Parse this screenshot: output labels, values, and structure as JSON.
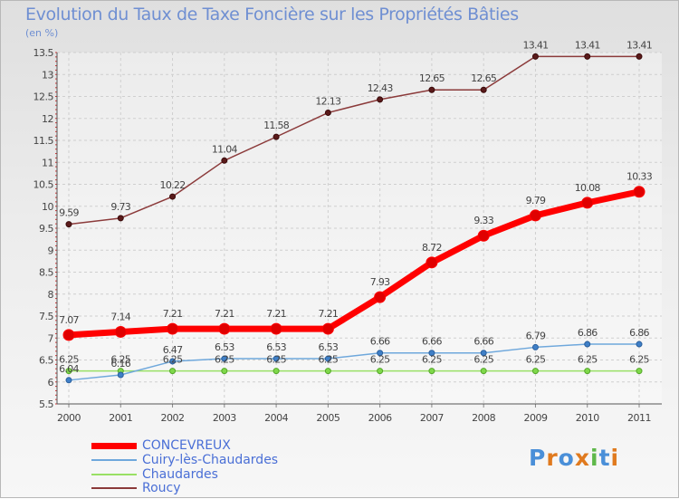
{
  "chart_data": {
    "type": "line",
    "title": "Evolution du Taux de Taxe Foncière sur les Propriétés Bâties",
    "ylabel": "(en %)",
    "x": [
      "2000",
      "2001",
      "2002",
      "2003",
      "2004",
      "2005",
      "2006",
      "2007",
      "2008",
      "2009",
      "2010",
      "2011"
    ],
    "ylim": [
      5.5,
      13.5
    ],
    "yticks": [
      "5.5",
      "6",
      "6.5",
      "7",
      "7.5",
      "8",
      "8.5",
      "9",
      "9.5",
      "10",
      "10.5",
      "11",
      "11.5",
      "12",
      "12.5",
      "13",
      "13.5"
    ],
    "grid": true,
    "series": [
      {
        "name": "CONCEVREUX",
        "color": "#ff0000",
        "labels": [
          "7.07",
          "7.14",
          "7.21",
          "7.21",
          "7.21",
          "7.21",
          "7.93",
          "8.72",
          "9.33",
          "9.79",
          "10.08",
          "10.33"
        ],
        "values": [
          7.07,
          7.14,
          7.21,
          7.21,
          7.21,
          7.21,
          7.93,
          8.72,
          9.33,
          9.79,
          10.08,
          10.33
        ]
      },
      {
        "name": "Cuiry-lès-Chaudardes",
        "color": "#6fa8dc",
        "labels": [
          "6.04",
          "6.16",
          "6.47",
          "6.53",
          "6.53",
          "6.53",
          "6.66",
          "6.66",
          "6.66",
          "6.79",
          "6.86",
          "6.86"
        ],
        "values": [
          6.04,
          6.16,
          6.47,
          6.53,
          6.53,
          6.53,
          6.66,
          6.66,
          6.66,
          6.79,
          6.86,
          6.86
        ]
      },
      {
        "name": "Chaudardes",
        "color": "#99e065",
        "labels": [
          "6.25",
          "6.25",
          "6.25",
          "6.25",
          "6.25",
          "6.25",
          "6.25",
          "6.25",
          "6.25",
          "6.25",
          "6.25",
          "6.25"
        ],
        "values": [
          6.25,
          6.25,
          6.25,
          6.25,
          6.25,
          6.25,
          6.25,
          6.25,
          6.25,
          6.25,
          6.25,
          6.25
        ]
      },
      {
        "name": "Roucy",
        "color": "#8b3a3a",
        "labels": [
          "9.59",
          "9.73",
          "10.22",
          "11.04",
          "11.58",
          "12.13",
          "12.43",
          "12.65",
          "12.65",
          "13.41",
          "13.41",
          "13.41"
        ],
        "values": [
          9.59,
          9.73,
          10.22,
          11.04,
          11.58,
          12.13,
          12.43,
          12.65,
          12.65,
          13.41,
          13.41,
          13.41
        ]
      }
    ]
  },
  "legend": [
    "CONCEVREUX",
    "Cuiry-lès-Chaudardes",
    "Chaudardes",
    "Roucy"
  ],
  "logo": {
    "text": "Proxiti",
    "letters": [
      "P",
      "r",
      "o",
      "x",
      "i",
      "t",
      "i"
    ],
    "colors": [
      "#4a8fd8",
      "#e07a1e",
      "#4a8fd8",
      "#e07a1e",
      "#5fb84a",
      "#4a8fd8",
      "#e07a1e"
    ]
  }
}
